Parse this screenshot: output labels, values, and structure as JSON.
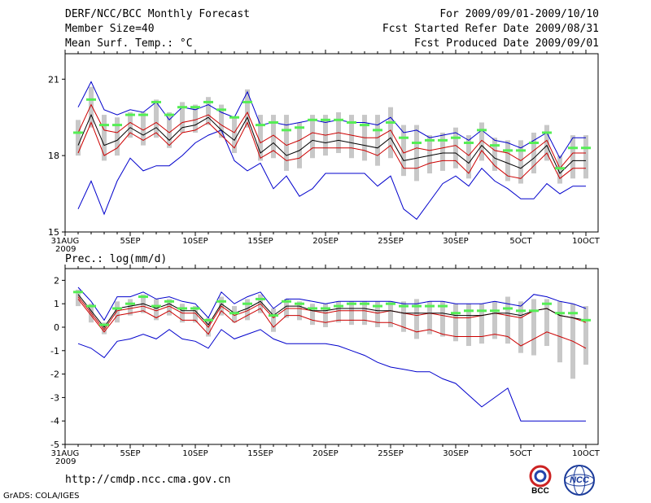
{
  "header": {
    "title": "DERF/NCC/BCC Monthly Forecast",
    "member_size": "Member Size=40",
    "variable1": "Mean Surf. Temp.: °C",
    "period": "For 2009/09/01-2009/10/10",
    "fcst_started": "Fcst Started Refer Date 2009/08/31",
    "fcst_produced": "Fcst Produced Date 2009/09/01"
  },
  "footer": {
    "url": "http://cmdp.ncc.cma.gov.cn",
    "grads": "GrADS: COLA/IGES",
    "logo_bcc": "BCC",
    "logo_ncc": "NCC"
  },
  "colors": {
    "max_line": "#0000cc",
    "min_line": "#0000cc",
    "upper_line": "#cc0000",
    "lower_line": "#cc0000",
    "mean_line": "#000000",
    "marker": "#55ee55",
    "bar": "#c8c8c8"
  },
  "chart_data": [
    {
      "type": "line",
      "title": "Mean Surf. Temp.: °C",
      "ylim": [
        15,
        22
      ],
      "yticks": [
        15,
        18,
        21
      ],
      "xticks": [
        {
          "day": 0,
          "label": "31AUG"
        },
        {
          "day": 5,
          "label": "5SEP"
        },
        {
          "day": 10,
          "label": "10SEP"
        },
        {
          "day": 15,
          "label": "15SEP"
        },
        {
          "day": 20,
          "label": "20SEP"
        },
        {
          "day": 25,
          "label": "25SEP"
        },
        {
          "day": 30,
          "label": "30SEP"
        },
        {
          "day": 35,
          "label": "5OCT"
        },
        {
          "day": 40,
          "label": "10OCT"
        }
      ],
      "year_label": "2009",
      "days": [
        1,
        2,
        3,
        4,
        5,
        6,
        7,
        8,
        9,
        10,
        11,
        12,
        13,
        14,
        15,
        16,
        17,
        18,
        19,
        20,
        21,
        22,
        23,
        24,
        25,
        26,
        27,
        28,
        29,
        30,
        31,
        32,
        33,
        34,
        35,
        36,
        37,
        38,
        39,
        40
      ],
      "series": [
        {
          "name": "max",
          "values": [
            19.9,
            20.9,
            19.8,
            19.6,
            19.8,
            19.7,
            20.1,
            19.4,
            19.9,
            19.8,
            20.0,
            19.7,
            19.5,
            20.5,
            19.2,
            19.3,
            19.2,
            19.3,
            19.4,
            19.3,
            19.4,
            19.3,
            19.3,
            19.2,
            19.5,
            18.9,
            19.0,
            18.7,
            18.8,
            18.9,
            18.6,
            19.0,
            18.6,
            18.5,
            18.3,
            18.6,
            18.9,
            17.9,
            18.7,
            18.7
          ]
        },
        {
          "name": "upper",
          "values": [
            18.9,
            20.0,
            19.0,
            18.9,
            19.3,
            19.0,
            19.3,
            18.9,
            19.3,
            19.4,
            19.6,
            19.2,
            18.9,
            19.7,
            18.5,
            18.8,
            18.4,
            18.6,
            18.9,
            18.8,
            18.9,
            18.8,
            18.7,
            18.7,
            19.0,
            18.1,
            18.3,
            18.2,
            18.3,
            18.4,
            18.0,
            18.6,
            18.2,
            18.1,
            17.8,
            18.2,
            18.6,
            17.5,
            18.1,
            18.1
          ]
        },
        {
          "name": "mean",
          "values": [
            18.4,
            19.6,
            18.4,
            18.6,
            19.1,
            18.8,
            19.1,
            18.6,
            19.1,
            19.2,
            19.5,
            19.0,
            18.6,
            19.5,
            18.1,
            18.5,
            18.0,
            18.2,
            18.6,
            18.5,
            18.6,
            18.5,
            18.4,
            18.3,
            18.7,
            17.8,
            17.9,
            18.0,
            18.1,
            18.1,
            17.7,
            18.4,
            17.9,
            17.7,
            17.5,
            17.9,
            18.4,
            17.3,
            17.8,
            17.8
          ]
        },
        {
          "name": "lower",
          "values": [
            18.1,
            19.3,
            18.0,
            18.3,
            18.9,
            18.6,
            18.9,
            18.4,
            18.9,
            19.0,
            19.3,
            18.8,
            18.3,
            19.3,
            17.9,
            18.2,
            17.8,
            17.9,
            18.3,
            18.3,
            18.3,
            18.3,
            18.2,
            18.0,
            18.4,
            17.5,
            17.5,
            17.7,
            17.8,
            17.8,
            17.3,
            18.2,
            17.6,
            17.2,
            17.1,
            17.6,
            18.1,
            17.1,
            17.5,
            17.5
          ]
        },
        {
          "name": "min",
          "values": [
            15.9,
            17.0,
            15.7,
            17.0,
            17.9,
            17.4,
            17.6,
            17.6,
            18.0,
            18.5,
            18.8,
            19.0,
            17.8,
            17.4,
            17.7,
            16.7,
            17.2,
            16.4,
            16.7,
            17.3,
            17.3,
            17.3,
            17.3,
            16.8,
            17.2,
            15.9,
            15.5,
            16.2,
            16.9,
            17.2,
            16.8,
            17.5,
            17.0,
            16.7,
            16.3,
            16.3,
            16.9,
            16.5,
            16.8,
            16.8
          ]
        },
        {
          "name": "markers",
          "values": [
            18.9,
            20.2,
            19.2,
            19.2,
            19.6,
            19.6,
            20.1,
            19.6,
            19.9,
            19.9,
            20.1,
            19.8,
            19.5,
            20.1,
            19.2,
            19.3,
            19.0,
            19.1,
            19.4,
            19.4,
            19.4,
            19.3,
            19.2,
            19.0,
            19.3,
            18.7,
            18.5,
            18.6,
            18.6,
            18.7,
            18.5,
            19.0,
            18.4,
            18.2,
            18.2,
            18.5,
            18.9,
            17.5,
            18.3,
            18.3
          ]
        },
        {
          "name": "bar_high",
          "values": [
            19.4,
            20.7,
            19.6,
            19.5,
            19.7,
            19.7,
            20.2,
            19.7,
            20.1,
            20.0,
            20.3,
            20.0,
            19.5,
            20.6,
            19.6,
            19.6,
            19.6,
            19.3,
            19.6,
            19.6,
            19.7,
            19.6,
            19.6,
            19.6,
            19.9,
            19.2,
            19.2,
            18.8,
            18.9,
            19.1,
            18.8,
            19.3,
            18.7,
            18.6,
            18.6,
            18.9,
            19.2,
            18.0,
            18.8,
            18.8
          ]
        },
        {
          "name": "bar_low",
          "values": [
            18.0,
            19.1,
            17.8,
            18.0,
            18.7,
            18.4,
            18.7,
            18.3,
            18.9,
            18.9,
            19.2,
            18.7,
            18.1,
            19.1,
            17.8,
            17.9,
            17.4,
            17.5,
            17.9,
            18.0,
            18.1,
            17.9,
            17.8,
            17.6,
            17.9,
            17.2,
            17.0,
            17.3,
            17.4,
            17.5,
            17.1,
            17.8,
            17.4,
            17.0,
            16.9,
            17.3,
            17.8,
            16.9,
            17.1,
            17.1
          ]
        }
      ]
    },
    {
      "type": "line",
      "title": "Prec.: log(mm/d)",
      "ylim": [
        -5,
        2.5
      ],
      "yticks": [
        -5,
        -4,
        -3,
        -2,
        -1,
        0,
        1,
        2
      ],
      "xticks": [
        {
          "day": 0,
          "label": "31AUG"
        },
        {
          "day": 5,
          "label": "5SEP"
        },
        {
          "day": 10,
          "label": "10SEP"
        },
        {
          "day": 15,
          "label": "15SEP"
        },
        {
          "day": 20,
          "label": "20SEP"
        },
        {
          "day": 25,
          "label": "25SEP"
        },
        {
          "day": 30,
          "label": "30SEP"
        },
        {
          "day": 35,
          "label": "5OCT"
        },
        {
          "day": 40,
          "label": "10OCT"
        }
      ],
      "year_label": "2009",
      "days": [
        1,
        2,
        3,
        4,
        5,
        6,
        7,
        8,
        9,
        10,
        11,
        12,
        13,
        14,
        15,
        16,
        17,
        18,
        19,
        20,
        21,
        22,
        23,
        24,
        25,
        26,
        27,
        28,
        29,
        30,
        31,
        32,
        33,
        34,
        35,
        36,
        37,
        38,
        39,
        40
      ],
      "series": [
        {
          "name": "max",
          "values": [
            1.7,
            1.1,
            0.3,
            1.3,
            1.3,
            1.5,
            1.2,
            1.3,
            1.1,
            1.0,
            0.4,
            1.5,
            1.0,
            1.3,
            1.5,
            0.8,
            1.2,
            1.2,
            1.1,
            1.0,
            1.1,
            1.1,
            1.1,
            1.1,
            1.1,
            1.0,
            1.0,
            1.1,
            1.1,
            1.0,
            1.0,
            1.0,
            1.1,
            1.0,
            0.9,
            1.4,
            1.3,
            1.1,
            1.0,
            0.8
          ]
        },
        {
          "name": "mean",
          "values": [
            1.4,
            0.7,
            0.0,
            0.8,
            0.9,
            1.0,
            0.8,
            1.0,
            0.7,
            0.7,
            0.1,
            1.0,
            0.6,
            0.8,
            1.1,
            0.5,
            0.9,
            0.9,
            0.7,
            0.7,
            0.8,
            0.8,
            0.8,
            0.7,
            0.7,
            0.6,
            0.6,
            0.6,
            0.6,
            0.5,
            0.5,
            0.5,
            0.6,
            0.6,
            0.5,
            0.7,
            0.8,
            0.5,
            0.4,
            0.3
          ]
        },
        {
          "name": "upper",
          "values": [
            1.3,
            0.6,
            -0.1,
            0.7,
            0.8,
            0.9,
            0.7,
            0.9,
            0.6,
            0.6,
            0.0,
            0.9,
            0.5,
            0.7,
            1.0,
            0.4,
            0.8,
            0.8,
            0.7,
            0.6,
            0.7,
            0.7,
            0.7,
            0.6,
            0.7,
            0.6,
            0.5,
            0.6,
            0.5,
            0.4,
            0.4,
            0.5,
            0.6,
            0.5,
            0.4,
            0.7,
            0.8,
            0.5,
            0.4,
            0.2
          ]
        },
        {
          "name": "lower",
          "values": [
            1.2,
            0.5,
            -0.2,
            0.5,
            0.6,
            0.7,
            0.4,
            0.7,
            0.3,
            0.3,
            -0.3,
            0.7,
            0.2,
            0.5,
            0.8,
            0.0,
            0.5,
            0.5,
            0.3,
            0.2,
            0.3,
            0.3,
            0.3,
            0.2,
            0.2,
            0.0,
            -0.2,
            -0.1,
            -0.3,
            -0.4,
            -0.4,
            -0.4,
            -0.3,
            -0.4,
            -0.8,
            -0.5,
            -0.2,
            -0.4,
            -0.6,
            -0.9
          ]
        },
        {
          "name": "min",
          "values": [
            -0.7,
            -0.9,
            -1.3,
            -0.6,
            -0.5,
            -0.3,
            -0.5,
            -0.1,
            -0.5,
            -0.6,
            -0.9,
            -0.1,
            -0.5,
            -0.3,
            -0.1,
            -0.5,
            -0.7,
            -0.7,
            -0.7,
            -0.7,
            -0.8,
            -1.0,
            -1.2,
            -1.5,
            -1.7,
            -1.8,
            -1.9,
            -1.9,
            -2.2,
            -2.4,
            -2.9,
            -3.4,
            -3.0,
            -2.6,
            -4.0,
            -4.0,
            -4.0,
            -4.0,
            -4.0,
            -4.0
          ]
        },
        {
          "name": "markers",
          "values": [
            1.5,
            0.9,
            0.1,
            0.8,
            1.0,
            1.3,
            0.9,
            1.1,
            0.8,
            0.8,
            0.3,
            1.1,
            0.6,
            1.0,
            1.2,
            0.5,
            1.1,
            1.0,
            0.8,
            0.8,
            0.9,
            1.0,
            1.0,
            0.9,
            1.0,
            0.9,
            0.9,
            0.9,
            0.9,
            0.6,
            0.7,
            0.7,
            0.7,
            0.8,
            0.7,
            0.7,
            1.0,
            0.6,
            0.6,
            0.3
          ]
        },
        {
          "name": "bar_high",
          "values": [
            1.6,
            1.0,
            0.2,
            1.1,
            1.2,
            1.4,
            1.2,
            1.2,
            1.0,
            0.9,
            0.4,
            1.3,
            0.9,
            1.2,
            1.4,
            0.8,
            1.2,
            1.1,
            1.0,
            1.0,
            1.1,
            1.1,
            1.1,
            1.1,
            1.1,
            1.1,
            1.2,
            1.1,
            1.1,
            1.0,
            1.0,
            1.0,
            1.1,
            1.3,
            1.1,
            1.2,
            1.2,
            1.1,
            1.0,
            0.9
          ]
        },
        {
          "name": "bar_low",
          "values": [
            0.9,
            0.2,
            -0.3,
            0.2,
            0.5,
            0.6,
            0.3,
            0.5,
            0.2,
            0.2,
            -0.4,
            0.5,
            0.2,
            0.3,
            0.6,
            -0.2,
            0.4,
            0.3,
            0.1,
            0.0,
            0.2,
            0.1,
            0.1,
            0.0,
            0.0,
            -0.2,
            -0.5,
            -0.3,
            -0.4,
            -0.6,
            -0.8,
            -0.7,
            -0.5,
            -0.7,
            -1.1,
            -1.2,
            -0.8,
            -1.5,
            -2.2,
            -1.6
          ]
        }
      ]
    }
  ]
}
